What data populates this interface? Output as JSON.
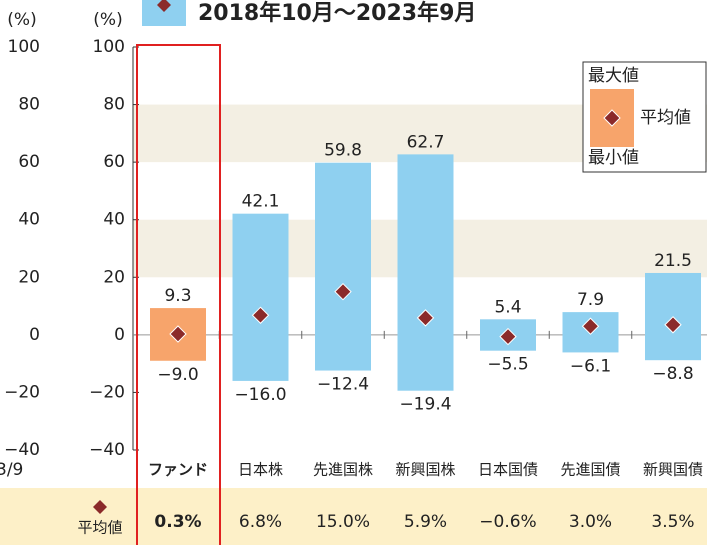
{
  "chart_data": {
    "type": "range_bar",
    "title": "2018年10月～2023年9月",
    "y_unit": "(%)",
    "categories": [
      "ファンド",
      "日本株",
      "先進国株",
      "新興国株",
      "日本国債",
      "先進国債",
      "新興国債"
    ],
    "colors": [
      "#f7a46b",
      "#8fd0f0",
      "#8fd0f0",
      "#8fd0f0",
      "#8fd0f0",
      "#8fd0f0",
      "#8fd0f0"
    ],
    "marker_color": "#8b2a2a",
    "max": [
      9.3,
      42.1,
      59.8,
      62.7,
      5.4,
      7.9,
      21.5
    ],
    "min": [
      -9.0,
      -16.0,
      -12.4,
      -19.4,
      -5.5,
      -6.1,
      -8.8
    ],
    "min_labels": [
      "−9.0",
      "−16.0",
      "−12.4",
      "−19.4",
      "−5.5",
      "−6.1",
      "−8.8"
    ],
    "average": [
      0.3,
      6.8,
      15.0,
      5.9,
      -0.6,
      3.0,
      3.5
    ],
    "average_labels": [
      "0.3%",
      "6.8%",
      "15.0%",
      "5.9%",
      "−0.6%",
      "3.0%",
      "3.5%"
    ],
    "average_row_label": "平均値",
    "ylim": [
      -40,
      100
    ],
    "yticks": [
      {
        "value": -40,
        "label": "−40"
      },
      {
        "value": -20,
        "label": "−20"
      },
      0,
      20,
      40,
      60,
      80,
      100
    ],
    "legend": {
      "max": "最大値",
      "average": "平均値",
      "min": "最小値"
    },
    "left_axis": {
      "unit": "(%)",
      "yticks": [
        {
          "value": -40,
          "label": "−40"
        },
        {
          "value": -20,
          "label": "−20"
        },
        0,
        20,
        40,
        60,
        80,
        100
      ],
      "fragment": "3/9"
    }
  }
}
